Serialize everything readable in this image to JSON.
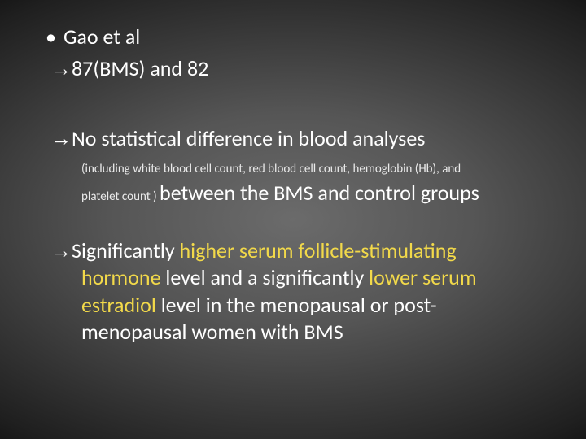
{
  "colors": {
    "text": "#ffffff",
    "highlight": "#f2d94a",
    "smallText": "#eaeaea",
    "bgCenter": "#6b6b6b",
    "bgEdge": "#0a0a0a"
  },
  "typography": {
    "bodyFontSize": 26,
    "smallFontSize": 15,
    "fontFamily": "Calibri"
  },
  "slide": {
    "bullet1": "Gao et al",
    "arrow": "→",
    "line2": "87(BMS) and 82",
    "block2": {
      "lead": "No statistical difference in blood analyses",
      "small_l1": "(including white blood cell count, red blood cell count, hemoglobin (Hb), and",
      "small_l2_prefix": "platelet count ) ",
      "tail": "between the BMS and control groups"
    },
    "block3": {
      "pre1": "Significantly ",
      "hl1": "higher serum follicle-stimulating",
      "cont_hl2": "hormone ",
      "cont_mid": "level and a significantly ",
      "hl3": "lower serum",
      "cont_hl4": "estradiol ",
      "cont_tail1": "level in the menopausal or post-",
      "cont_tail2": "menopausal women with BMS"
    }
  }
}
